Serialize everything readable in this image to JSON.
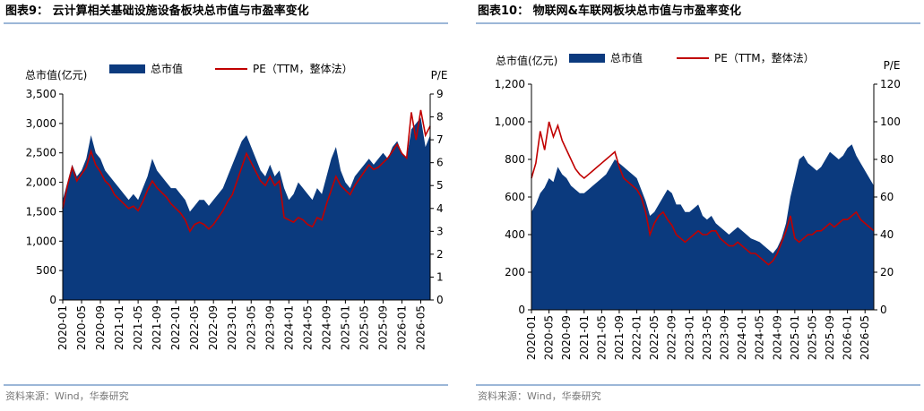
{
  "chart_data": [
    {
      "type": "area-line",
      "title": "图表9：  云计算相关基础设施设备板块总市值与市盈率变化",
      "source": "资料来源：Wind，华泰研究",
      "ylabel": "总市值(亿元)",
      "y2label": "P/E",
      "categories": [
        "2020-01",
        null,
        null,
        null,
        "2020-05",
        null,
        null,
        null,
        "2020-09",
        null,
        null,
        null,
        "2021-01",
        null,
        null,
        null,
        "2021-05",
        null,
        null,
        null,
        "2021-09",
        null,
        null,
        null,
        "2022-01",
        null,
        null,
        null,
        "2022-05",
        null,
        null,
        null,
        "2022-09",
        null,
        null,
        null,
        "2023-01",
        null,
        null,
        null,
        "2023-05",
        null,
        null,
        null,
        "2023-09",
        null,
        null,
        null,
        "2024-01",
        null,
        null,
        null,
        "2024-05",
        null,
        null,
        null,
        "2024-09",
        null,
        null,
        null,
        "2025-01",
        null,
        null,
        null,
        "2025-05",
        null,
        null,
        null,
        "2025-09",
        null,
        null,
        null,
        "2026-01",
        null,
        null,
        null,
        "2026-05",
        null,
        null
      ],
      "series": [
        {
          "name": "总市值",
          "color": "#0b3a7e",
          "values": [
            1700,
            2000,
            2300,
            2100,
            2200,
            2400,
            2800,
            2500,
            2400,
            2200,
            2100,
            2000,
            1900,
            1800,
            1700,
            1800,
            1700,
            1900,
            2100,
            2400,
            2200,
            2100,
            2000,
            1900,
            1900,
            1800,
            1700,
            1500,
            1600,
            1700,
            1700,
            1600,
            1700,
            1800,
            1900,
            2100,
            2300,
            2500,
            2700,
            2800,
            2600,
            2400,
            2200,
            2100,
            2300,
            2100,
            2200,
            1900,
            1700,
            1800,
            2000,
            1900,
            1800,
            1700,
            1900,
            1800,
            2100,
            2400,
            2600,
            2200,
            2000,
            1900,
            2100,
            2200,
            2300,
            2400,
            2300,
            2400,
            2500,
            2400,
            2600,
            2700,
            2500,
            2400,
            2900,
            3000,
            3100,
            2600,
            2800
          ]
        },
        {
          "name": "PE（TTM，整体法）",
          "color": "#c00000",
          "axis": "y2",
          "values": [
            4.0,
            5.0,
            5.8,
            5.2,
            5.5,
            5.8,
            6.5,
            5.9,
            5.6,
            5.2,
            5.0,
            4.6,
            4.4,
            4.2,
            4.0,
            4.1,
            3.9,
            4.3,
            4.8,
            5.2,
            4.9,
            4.7,
            4.5,
            4.2,
            4.0,
            3.8,
            3.5,
            3.0,
            3.3,
            3.4,
            3.3,
            3.1,
            3.3,
            3.6,
            3.9,
            4.3,
            4.6,
            5.2,
            5.8,
            6.4,
            6.0,
            5.6,
            5.2,
            5.0,
            5.4,
            5.0,
            5.2,
            3.6,
            3.5,
            3.4,
            3.6,
            3.5,
            3.3,
            3.2,
            3.6,
            3.5,
            4.2,
            4.8,
            5.4,
            5.0,
            4.8,
            4.6,
            5.0,
            5.3,
            5.6,
            5.9,
            5.7,
            5.8,
            6.0,
            6.2,
            6.5,
            6.8,
            6.4,
            6.2,
            8.2,
            7.0,
            8.3,
            7.2,
            7.6
          ]
        }
      ],
      "ylim": [
        0,
        3500
      ],
      "yticks": [
        0,
        500,
        {
          "value": 1000,
          "label": "1,000"
        },
        {
          "value": 1500,
          "label": "1,500"
        },
        {
          "value": 2000,
          "label": "2,000"
        },
        {
          "value": 2500,
          "label": "2,500"
        },
        {
          "value": 3000,
          "label": "3,000"
        },
        {
          "value": 3500,
          "label": "3,500"
        }
      ],
      "y2lim": [
        0,
        9
      ],
      "y2ticks": [
        0,
        1,
        2,
        3,
        4,
        5,
        6,
        7,
        8,
        9
      ]
    },
    {
      "type": "area-line",
      "title": "图表10：  物联网&车联网板块总市值与市盈率变化",
      "source": "资料来源：Wind，华泰研究",
      "ylabel": "总市值(亿元)",
      "y2label": "P/E",
      "categories": [
        "2020-01",
        null,
        null,
        null,
        "2020-05",
        null,
        null,
        null,
        "2020-09",
        null,
        null,
        null,
        "2021-01",
        null,
        null,
        null,
        "2021-05",
        null,
        null,
        null,
        "2021-09",
        null,
        null,
        null,
        "2022-01",
        null,
        null,
        null,
        "2022-05",
        null,
        null,
        null,
        "2022-09",
        null,
        null,
        null,
        "2023-01",
        null,
        null,
        null,
        "2023-05",
        null,
        null,
        null,
        "2023-09",
        null,
        null,
        null,
        "2024-01",
        null,
        null,
        null,
        "2024-05",
        null,
        null,
        null,
        "2024-09",
        null,
        null,
        null,
        "2025-01",
        null,
        null,
        null,
        "2025-05",
        null,
        null,
        null,
        "2025-09",
        null,
        null,
        null,
        "2026-01",
        null,
        null,
        null,
        "2026-05",
        null,
        null
      ],
      "series": [
        {
          "name": "总市值",
          "color": "#0b3a7e",
          "values": [
            520,
            560,
            620,
            650,
            700,
            680,
            760,
            720,
            700,
            660,
            640,
            620,
            620,
            640,
            660,
            680,
            700,
            720,
            760,
            800,
            780,
            760,
            740,
            720,
            700,
            640,
            580,
            500,
            520,
            560,
            600,
            640,
            620,
            560,
            560,
            520,
            520,
            540,
            560,
            500,
            480,
            500,
            460,
            440,
            420,
            400,
            420,
            440,
            420,
            400,
            380,
            370,
            360,
            340,
            320,
            300,
            330,
            380,
            460,
            600,
            700,
            800,
            820,
            780,
            760,
            740,
            760,
            800,
            840,
            820,
            800,
            820,
            860,
            880,
            820,
            780,
            740,
            700,
            660
          ]
        },
        {
          "name": "PE（TTM，整体法）",
          "color": "#c00000",
          "axis": "y2",
          "values": [
            70,
            78,
            95,
            85,
            100,
            92,
            98,
            90,
            85,
            80,
            75,
            72,
            70,
            72,
            74,
            76,
            78,
            80,
            82,
            84,
            76,
            70,
            68,
            66,
            64,
            60,
            52,
            40,
            46,
            50,
            52,
            48,
            45,
            40,
            38,
            36,
            38,
            40,
            42,
            40,
            40,
            42,
            42,
            38,
            36,
            34,
            34,
            36,
            34,
            32,
            30,
            30,
            28,
            26,
            24,
            26,
            30,
            36,
            42,
            50,
            38,
            36,
            38,
            40,
            40,
            42,
            42,
            44,
            46,
            44,
            46,
            48,
            48,
            50,
            52,
            48,
            46,
            44,
            42
          ]
        }
      ],
      "ylim": [
        0,
        1200
      ],
      "yticks": [
        0,
        200,
        400,
        600,
        800,
        {
          "value": 1000,
          "label": "1,000"
        },
        {
          "value": 1200,
          "label": "1,200"
        }
      ],
      "y2lim": [
        0,
        120
      ],
      "y2ticks": [
        0,
        20,
        40,
        60,
        80,
        100,
        120
      ]
    }
  ]
}
